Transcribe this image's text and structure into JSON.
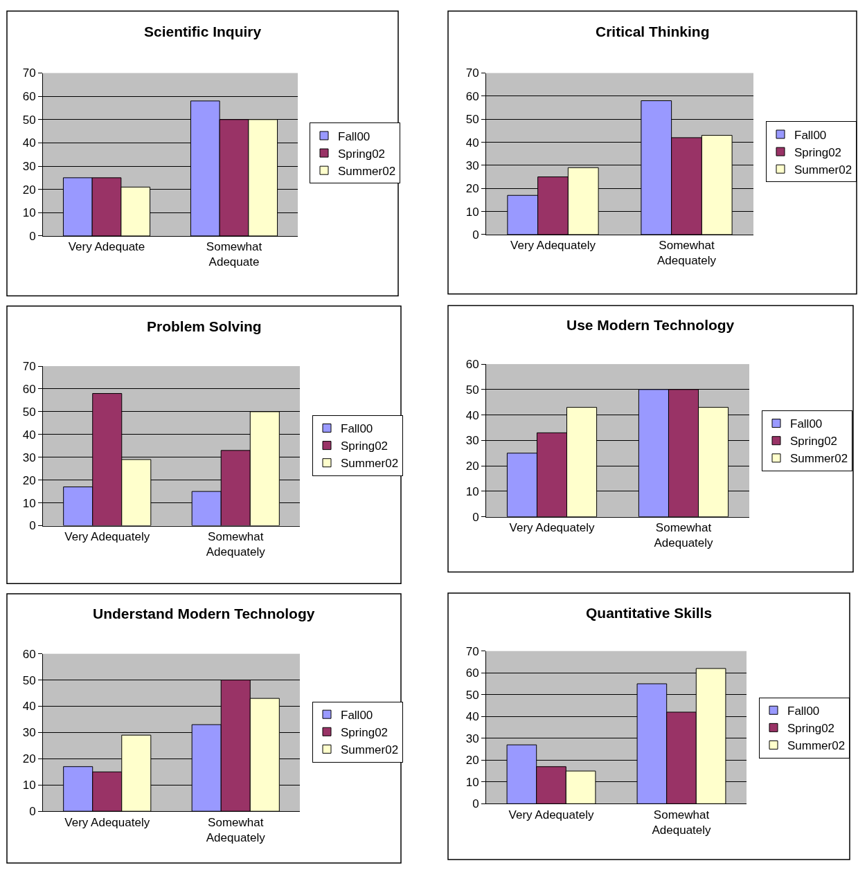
{
  "chart_data": [
    {
      "type": "bar",
      "title": "Scientific Inquiry",
      "categories": [
        "Very Adequate",
        "Somewhat Adequate"
      ],
      "series": [
        {
          "name": "Fall00",
          "color": "#9999ff",
          "values": [
            25,
            58
          ]
        },
        {
          "name": "Spring02",
          "color": "#993366",
          "values": [
            25,
            50
          ]
        },
        {
          "name": "Summer02",
          "color": "#ffffcc",
          "values": [
            21,
            50
          ]
        }
      ],
      "ylim": [
        0,
        70
      ],
      "yticks": [
        0,
        10,
        20,
        30,
        40,
        50,
        60,
        70
      ],
      "grid": "y",
      "legend": "right"
    },
    {
      "type": "bar",
      "title": "Critical Thinking",
      "categories": [
        "Very Adequately",
        "Somewhat Adequately"
      ],
      "series": [
        {
          "name": "Fall00",
          "color": "#9999ff",
          "values": [
            17,
            58
          ]
        },
        {
          "name": "Spring02",
          "color": "#993366",
          "values": [
            25,
            42
          ]
        },
        {
          "name": "Summer02",
          "color": "#ffffcc",
          "values": [
            29,
            43
          ]
        }
      ],
      "ylim": [
        0,
        70
      ],
      "yticks": [
        0,
        10,
        20,
        30,
        40,
        50,
        60,
        70
      ],
      "grid": "y",
      "legend": "right"
    },
    {
      "type": "bar",
      "title": "Problem Solving",
      "categories": [
        "Very Adequately",
        "Somewhat Adequately"
      ],
      "series": [
        {
          "name": "Fall00",
          "color": "#9999ff",
          "values": [
            17,
            15
          ]
        },
        {
          "name": "Spring02",
          "color": "#993366",
          "values": [
            58,
            33
          ]
        },
        {
          "name": "Summer02",
          "color": "#ffffcc",
          "values": [
            29,
            50
          ]
        }
      ],
      "ylim": [
        0,
        70
      ],
      "yticks": [
        0,
        10,
        20,
        30,
        40,
        50,
        60,
        70
      ],
      "grid": "y",
      "legend": "right"
    },
    {
      "type": "bar",
      "title": "Use Modern Technology",
      "categories": [
        "Very Adequately",
        "Somewhat Adequately"
      ],
      "series": [
        {
          "name": "Fall00",
          "color": "#9999ff",
          "values": [
            25,
            50
          ]
        },
        {
          "name": "Spring02",
          "color": "#993366",
          "values": [
            33,
            50
          ]
        },
        {
          "name": "Summer02",
          "color": "#ffffcc",
          "values": [
            43,
            43
          ]
        }
      ],
      "ylim": [
        0,
        60
      ],
      "yticks": [
        0,
        10,
        20,
        30,
        40,
        50,
        60
      ],
      "grid": "y",
      "legend": "right"
    },
    {
      "type": "bar",
      "title": "Understand Modern Technology",
      "categories": [
        "Very Adequately",
        "Somewhat Adequately"
      ],
      "series": [
        {
          "name": "Fall00",
          "color": "#9999ff",
          "values": [
            17,
            33
          ]
        },
        {
          "name": "Spring02",
          "color": "#993366",
          "values": [
            15,
            50
          ]
        },
        {
          "name": "Summer02",
          "color": "#ffffcc",
          "values": [
            29,
            43
          ]
        }
      ],
      "ylim": [
        0,
        60
      ],
      "yticks": [
        0,
        10,
        20,
        30,
        40,
        50,
        60
      ],
      "grid": "y",
      "legend": "right"
    },
    {
      "type": "bar",
      "title": "Quantitative Skills",
      "categories": [
        "Very Adequately",
        "Somewhat Adequately"
      ],
      "series": [
        {
          "name": "Fall00",
          "color": "#9999ff",
          "values": [
            27,
            55
          ]
        },
        {
          "name": "Spring02",
          "color": "#993366",
          "values": [
            17,
            42
          ]
        },
        {
          "name": "Summer02",
          "color": "#ffffcc",
          "values": [
            15,
            62
          ]
        }
      ],
      "ylim": [
        0,
        70
      ],
      "yticks": [
        0,
        10,
        20,
        30,
        40,
        50,
        60,
        70
      ],
      "grid": "y",
      "legend": "right"
    }
  ]
}
